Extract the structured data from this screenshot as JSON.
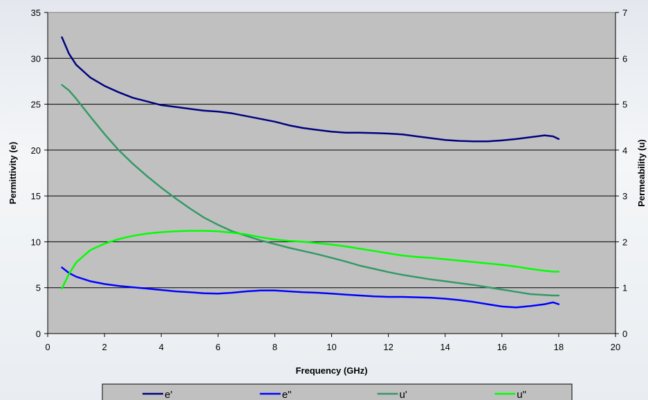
{
  "chart_data": {
    "type": "line",
    "title": "",
    "xlabel": "Frequency (GHz)",
    "ylabel": "Permittivity (e)",
    "y2label": "Permeability (u)",
    "xlim": [
      0,
      20
    ],
    "ylim": [
      0,
      35
    ],
    "y2lim": [
      0,
      7
    ],
    "xticks": [
      0,
      2,
      4,
      6,
      8,
      10,
      12,
      14,
      16,
      18,
      20
    ],
    "yticks": [
      0,
      5,
      10,
      15,
      20,
      25,
      30,
      35
    ],
    "y2ticks": [
      0,
      1,
      2,
      3,
      4,
      5,
      6,
      7
    ],
    "grid": "horizontal",
    "legend_position": "bottom",
    "plot_background": "#c0c0c0",
    "series": [
      {
        "name": "e'",
        "axis": "left",
        "color": "#000080",
        "x": [
          0.5,
          0.75,
          1,
          1.5,
          2,
          2.5,
          3,
          3.5,
          4,
          4.5,
          5,
          5.5,
          6,
          6.5,
          7,
          7.5,
          8,
          8.5,
          9,
          9.5,
          10,
          10.5,
          11,
          11.5,
          12,
          12.5,
          13,
          13.5,
          14,
          14.5,
          15,
          15.5,
          16,
          16.5,
          17,
          17.5,
          17.8,
          18
        ],
        "y": [
          32.3,
          30.5,
          29.3,
          27.9,
          27.0,
          26.3,
          25.7,
          25.3,
          24.9,
          24.7,
          24.5,
          24.3,
          24.2,
          24.0,
          23.7,
          23.4,
          23.1,
          22.7,
          22.4,
          22.2,
          22.0,
          21.9,
          21.9,
          21.85,
          21.8,
          21.7,
          21.5,
          21.3,
          21.1,
          21.0,
          20.95,
          20.95,
          21.05,
          21.2,
          21.4,
          21.6,
          21.5,
          21.2
        ]
      },
      {
        "name": "e\"",
        "axis": "left",
        "color": "#0000ff",
        "x": [
          0.5,
          0.75,
          1,
          1.5,
          2,
          2.5,
          3,
          3.5,
          4,
          4.5,
          5,
          5.5,
          6,
          6.5,
          7,
          7.5,
          8,
          8.5,
          9,
          9.5,
          10,
          10.5,
          11,
          11.5,
          12,
          12.5,
          13,
          13.5,
          14,
          14.5,
          15,
          15.5,
          16,
          16.5,
          17,
          17.5,
          17.8,
          18
        ],
        "y": [
          7.2,
          6.6,
          6.2,
          5.7,
          5.4,
          5.2,
          5.05,
          4.9,
          4.75,
          4.6,
          4.5,
          4.4,
          4.35,
          4.45,
          4.6,
          4.7,
          4.7,
          4.6,
          4.5,
          4.45,
          4.35,
          4.25,
          4.15,
          4.05,
          4.0,
          4.0,
          3.95,
          3.9,
          3.8,
          3.65,
          3.45,
          3.2,
          2.95,
          2.85,
          3.0,
          3.2,
          3.4,
          3.2
        ]
      },
      {
        "name": "u'",
        "axis": "right",
        "color": "#339966",
        "x": [
          0.5,
          0.75,
          1,
          1.5,
          2,
          2.5,
          3,
          3.5,
          4,
          4.5,
          5,
          5.5,
          6,
          6.5,
          7,
          7.5,
          8,
          8.5,
          9,
          9.5,
          10,
          10.5,
          11,
          11.5,
          12,
          12.5,
          13,
          13.5,
          14,
          14.5,
          15,
          15.5,
          16,
          16.5,
          17,
          17.5,
          17.8,
          18
        ],
        "y": [
          5.42,
          5.3,
          5.12,
          4.73,
          4.35,
          4.0,
          3.7,
          3.43,
          3.18,
          2.95,
          2.73,
          2.53,
          2.37,
          2.23,
          2.13,
          2.03,
          1.95,
          1.87,
          1.8,
          1.73,
          1.65,
          1.57,
          1.48,
          1.41,
          1.34,
          1.28,
          1.23,
          1.18,
          1.14,
          1.1,
          1.06,
          1.01,
          0.96,
          0.91,
          0.86,
          0.84,
          0.83,
          0.83
        ]
      },
      {
        "name": "u\"",
        "axis": "right",
        "color": "#00ff00",
        "x": [
          0.5,
          0.75,
          1,
          1.5,
          2,
          2.5,
          3,
          3.5,
          4,
          4.5,
          5,
          5.5,
          6,
          6.5,
          7,
          7.5,
          8,
          8.5,
          9,
          9.5,
          10,
          10.5,
          11,
          11.5,
          12,
          12.5,
          13,
          13.5,
          14,
          14.5,
          15,
          15.5,
          16,
          16.5,
          17,
          17.5,
          17.8,
          18
        ],
        "y": [
          0.98,
          1.3,
          1.55,
          1.82,
          1.96,
          2.06,
          2.13,
          2.18,
          2.21,
          2.23,
          2.24,
          2.24,
          2.23,
          2.2,
          2.16,
          2.1,
          2.05,
          2.02,
          2.0,
          1.97,
          1.94,
          1.9,
          1.85,
          1.8,
          1.75,
          1.7,
          1.67,
          1.65,
          1.62,
          1.59,
          1.56,
          1.53,
          1.5,
          1.46,
          1.41,
          1.37,
          1.35,
          1.35
        ]
      }
    ]
  }
}
